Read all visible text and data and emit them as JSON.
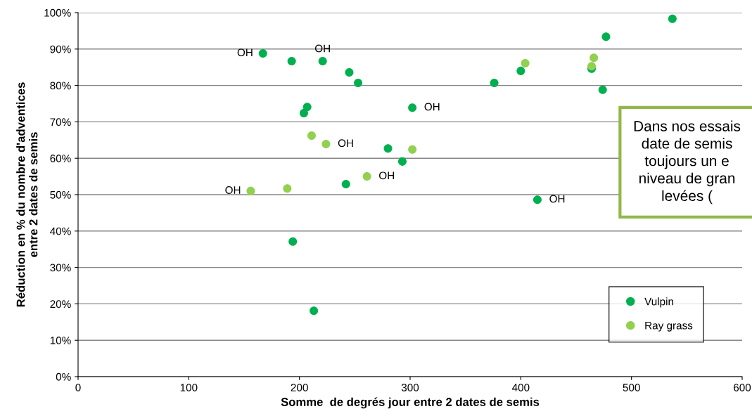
{
  "chart_data": {
    "type": "scatter",
    "xlabel": "Somme  de degrés jour entre 2 dates de semis",
    "ylabel": "Réduction en % du nombre d'adventices\nentre 2 dates de semis",
    "xlim": [
      0,
      600
    ],
    "xticks": [
      0,
      100,
      200,
      300,
      400,
      500,
      600
    ],
    "ylim": [
      0,
      100
    ],
    "yticks": [
      {
        "value": 0,
        "label": "0%"
      },
      {
        "value": 10,
        "label": "10%"
      },
      {
        "value": 20,
        "label": "20%"
      },
      {
        "value": 30,
        "label": "30%"
      },
      {
        "value": 40,
        "label": "40%"
      },
      {
        "value": 50,
        "label": "50%"
      },
      {
        "value": 60,
        "label": "60%"
      },
      {
        "value": 70,
        "label": "70%"
      },
      {
        "value": 80,
        "label": "80%"
      },
      {
        "value": 90,
        "label": "90%"
      },
      {
        "value": 100,
        "label": "100%"
      }
    ],
    "grid": "y",
    "legend": "bottom right",
    "marker": "circle",
    "series": [
      {
        "name": "Vulpin",
        "color": "#00b050",
        "x": [
          167,
          193,
          221,
          207,
          204,
          245,
          253,
          302,
          280,
          293,
          242,
          194,
          213,
          376,
          400,
          464,
          474,
          477,
          537,
          415
        ],
        "values": [
          88.8,
          86.7,
          86.7,
          74.1,
          72.4,
          83.6,
          80.7,
          73.9,
          62.7,
          59.1,
          52.9,
          37.1,
          18.1,
          80.7,
          84,
          84.6,
          78.8,
          93.4,
          98.3,
          48.6
        ]
      },
      {
        "name": "Ray grass",
        "color": "#92d050",
        "x": [
          211,
          224,
          189,
          156,
          261,
          302,
          404,
          464,
          466
        ],
        "values": [
          66.2,
          63.9,
          51.7,
          51.0,
          55.0,
          62.4,
          86.1,
          85.3,
          87.6
        ]
      }
    ],
    "annotations": [
      {
        "text": "OH",
        "x": 167,
        "y": 88.8
      },
      {
        "text": "OH",
        "x": 221,
        "y": 86.7
      },
      {
        "text": "OH",
        "x": 302,
        "y": 73.9
      },
      {
        "text": "OH",
        "x": 224,
        "y": 63.9
      },
      {
        "text": "OH",
        "x": 261,
        "y": 55.0
      },
      {
        "text": "OH",
        "x": 156,
        "y": 51.0
      },
      {
        "text": "OH",
        "x": 415,
        "y": 48.6
      },
      "Dans nos essais\ndate de semis\ntoujours un e\nniveau de gran\nlevées ("
    ]
  }
}
